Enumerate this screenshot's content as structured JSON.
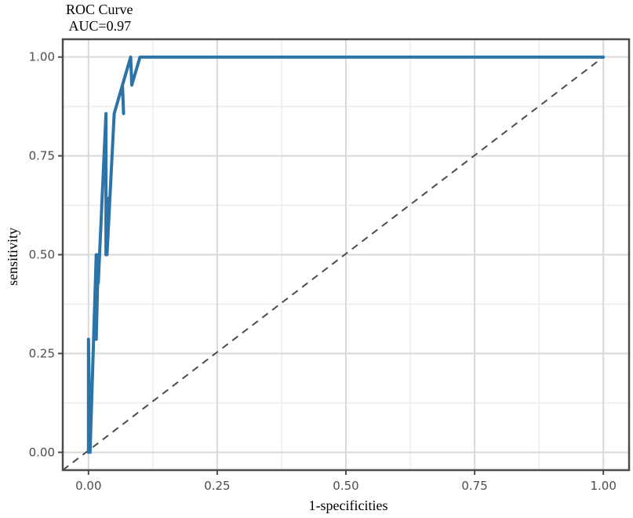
{
  "chart_data": {
    "type": "line",
    "title": "ROC Curve",
    "subtitle": " AUC=0.97",
    "xlabel": "1-specificities",
    "ylabel": "sensitivity",
    "xlim": [
      -0.05,
      1.05
    ],
    "ylim": [
      -0.045,
      1.045
    ],
    "x_ticks": [
      0.0,
      0.25,
      0.5,
      0.75,
      1.0
    ],
    "x_tick_labels": [
      "0.00",
      "0.25",
      "0.50",
      "0.75",
      "1.00"
    ],
    "y_ticks": [
      0.0,
      0.25,
      0.5,
      0.75,
      1.0
    ],
    "y_tick_labels": [
      "0.00",
      "0.25",
      "0.50",
      "0.75",
      "1.00"
    ],
    "grid": true,
    "reference_line": {
      "x": [
        0,
        1
      ],
      "y": [
        0,
        1
      ],
      "style": "dashed",
      "color": "#4d4d4d"
    },
    "series": [
      {
        "color": "#2c73a8",
        "x": [
          0.0,
          0.0,
          0.003,
          0.015,
          0.015,
          0.019,
          0.019,
          0.034,
          0.034,
          0.036,
          0.036,
          0.05,
          0.066,
          0.068,
          0.066,
          0.082,
          0.084,
          0.084,
          0.1,
          0.1,
          1.0
        ],
        "y": [
          0.0,
          0.286,
          0.0,
          0.5,
          0.286,
          0.5,
          0.429,
          0.857,
          0.5,
          0.643,
          0.5,
          0.857,
          0.929,
          0.857,
          0.929,
          1.0,
          0.929,
          0.929,
          1.0,
          1.0,
          1.0
        ]
      }
    ]
  }
}
